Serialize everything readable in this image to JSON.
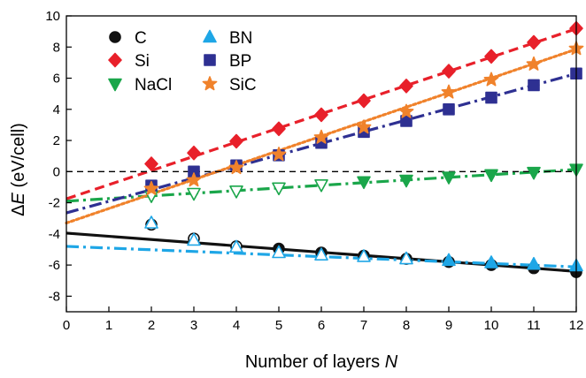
{
  "chart_data": {
    "type": "scatter",
    "xlabel": "Number of layers",
    "xlabel_var": "N",
    "ylabel_symbol": "Δ",
    "ylabel_var": "E",
    "ylabel_unit": "(eV/cell)",
    "xlim": [
      0,
      12
    ],
    "ylim": [
      -9,
      10
    ],
    "xticks": [
      0,
      1,
      2,
      3,
      4,
      5,
      6,
      7,
      8,
      9,
      10,
      11,
      12
    ],
    "yticks": [
      -8,
      -6,
      -4,
      -2,
      0,
      2,
      4,
      6,
      8,
      10
    ],
    "grid": false,
    "legend_position": "top-left",
    "zero_line": {
      "y": 0,
      "style": "dashed",
      "color": "#000000"
    },
    "series": [
      {
        "name": "C",
        "marker": "circle",
        "color": "#111111",
        "fit": {
          "intercept": -3.95,
          "slope": -0.205,
          "style": "solid",
          "color": "#111111"
        },
        "points": [
          {
            "x": 2,
            "y": -3.4,
            "filled": false
          },
          {
            "x": 3,
            "y": -4.3,
            "filled": false
          },
          {
            "x": 4,
            "y": -4.8,
            "filled": false
          },
          {
            "x": 5,
            "y": -4.95,
            "filled": true
          },
          {
            "x": 6,
            "y": -5.2,
            "filled": true
          },
          {
            "x": 7,
            "y": -5.4,
            "filled": true
          },
          {
            "x": 8,
            "y": -5.6,
            "filled": true
          },
          {
            "x": 9,
            "y": -5.8,
            "filled": true
          },
          {
            "x": 10,
            "y": -6.0,
            "filled": true
          },
          {
            "x": 11,
            "y": -6.2,
            "filled": true
          },
          {
            "x": 12,
            "y": -6.45,
            "filled": true
          }
        ]
      },
      {
        "name": "Si",
        "marker": "diamond",
        "color": "#e8202a",
        "fit": {
          "intercept": -1.75,
          "slope": 0.91,
          "style": "dashed",
          "color": "#e8202a"
        },
        "points": [
          {
            "x": 2,
            "y": 0.5,
            "filled": true
          },
          {
            "x": 3,
            "y": 1.2,
            "filled": true
          },
          {
            "x": 4,
            "y": 1.95,
            "filled": true
          },
          {
            "x": 5,
            "y": 2.75,
            "filled": true
          },
          {
            "x": 6,
            "y": 3.65,
            "filled": true
          },
          {
            "x": 7,
            "y": 4.55,
            "filled": true
          },
          {
            "x": 8,
            "y": 5.5,
            "filled": true
          },
          {
            "x": 9,
            "y": 6.45,
            "filled": true
          },
          {
            "x": 10,
            "y": 7.4,
            "filled": true
          },
          {
            "x": 11,
            "y": 8.3,
            "filled": true
          },
          {
            "x": 12,
            "y": 9.2,
            "filled": true
          }
        ]
      },
      {
        "name": "NaCl",
        "marker": "triangle-down",
        "color": "#1aa64a",
        "fit": {
          "intercept": -1.9,
          "slope": 0.17,
          "style": "dashdot",
          "color": "#1aa64a"
        },
        "points": [
          {
            "x": 2,
            "y": -1.55,
            "filled": false
          },
          {
            "x": 3,
            "y": -1.4,
            "filled": false
          },
          {
            "x": 4,
            "y": -1.25,
            "filled": false
          },
          {
            "x": 5,
            "y": -1.05,
            "filled": false
          },
          {
            "x": 6,
            "y": -0.85,
            "filled": false
          },
          {
            "x": 7,
            "y": -0.65,
            "filled": true
          },
          {
            "x": 8,
            "y": -0.55,
            "filled": true
          },
          {
            "x": 9,
            "y": -0.35,
            "filled": true
          },
          {
            "x": 10,
            "y": -0.2,
            "filled": true
          },
          {
            "x": 11,
            "y": -0.05,
            "filled": true
          },
          {
            "x": 12,
            "y": 0.15,
            "filled": true
          }
        ]
      },
      {
        "name": "BN",
        "marker": "triangle-up",
        "color": "#1ea6e6",
        "fit": {
          "intercept": -4.8,
          "slope": -0.11,
          "style": "dashdot",
          "color": "#1ea6e6"
        },
        "points": [
          {
            "x": 2,
            "y": -3.3,
            "filled": false
          },
          {
            "x": 3,
            "y": -4.4,
            "filled": false
          },
          {
            "x": 4,
            "y": -4.85,
            "filled": false
          },
          {
            "x": 5,
            "y": -5.2,
            "filled": false
          },
          {
            "x": 6,
            "y": -5.35,
            "filled": false
          },
          {
            "x": 7,
            "y": -5.45,
            "filled": false
          },
          {
            "x": 8,
            "y": -5.6,
            "filled": false
          },
          {
            "x": 9,
            "y": -5.7,
            "filled": true
          },
          {
            "x": 10,
            "y": -5.85,
            "filled": true
          },
          {
            "x": 11,
            "y": -5.95,
            "filled": true
          },
          {
            "x": 12,
            "y": -6.05,
            "filled": true
          }
        ]
      },
      {
        "name": "BP",
        "marker": "square",
        "color": "#2e3092",
        "fit": {
          "intercept": -2.65,
          "slope": 0.745,
          "style": "dashdot",
          "color": "#2e3092"
        },
        "points": [
          {
            "x": 2,
            "y": -0.9,
            "filled": true
          },
          {
            "x": 3,
            "y": 0.0,
            "filled": true
          },
          {
            "x": 4,
            "y": 0.4,
            "filled": true
          },
          {
            "x": 5,
            "y": 1.05,
            "filled": true
          },
          {
            "x": 6,
            "y": 1.85,
            "filled": true
          },
          {
            "x": 7,
            "y": 2.55,
            "filled": true
          },
          {
            "x": 8,
            "y": 3.25,
            "filled": true
          },
          {
            "x": 9,
            "y": 4.0,
            "filled": true
          },
          {
            "x": 10,
            "y": 4.75,
            "filled": true
          },
          {
            "x": 11,
            "y": 5.55,
            "filled": true
          },
          {
            "x": 12,
            "y": 6.3,
            "filled": true
          }
        ]
      },
      {
        "name": "SiC",
        "marker": "star",
        "color": "#f0822b",
        "fit": {
          "intercept": -3.3,
          "slope": 0.93,
          "style": "dotted",
          "color": "#f0822b"
        },
        "points": [
          {
            "x": 2,
            "y": -1.1,
            "filled": true
          },
          {
            "x": 3,
            "y": -0.55,
            "filled": true
          },
          {
            "x": 4,
            "y": 0.25,
            "filled": true
          },
          {
            "x": 5,
            "y": 1.1,
            "filled": true
          },
          {
            "x": 6,
            "y": 2.2,
            "filled": true
          },
          {
            "x": 7,
            "y": 2.85,
            "filled": true
          },
          {
            "x": 8,
            "y": 3.85,
            "filled": true
          },
          {
            "x": 9,
            "y": 5.1,
            "filled": true
          },
          {
            "x": 10,
            "y": 5.9,
            "filled": true
          },
          {
            "x": 11,
            "y": 6.9,
            "filled": true
          },
          {
            "x": 12,
            "y": 7.9,
            "filled": true
          }
        ]
      }
    ]
  }
}
